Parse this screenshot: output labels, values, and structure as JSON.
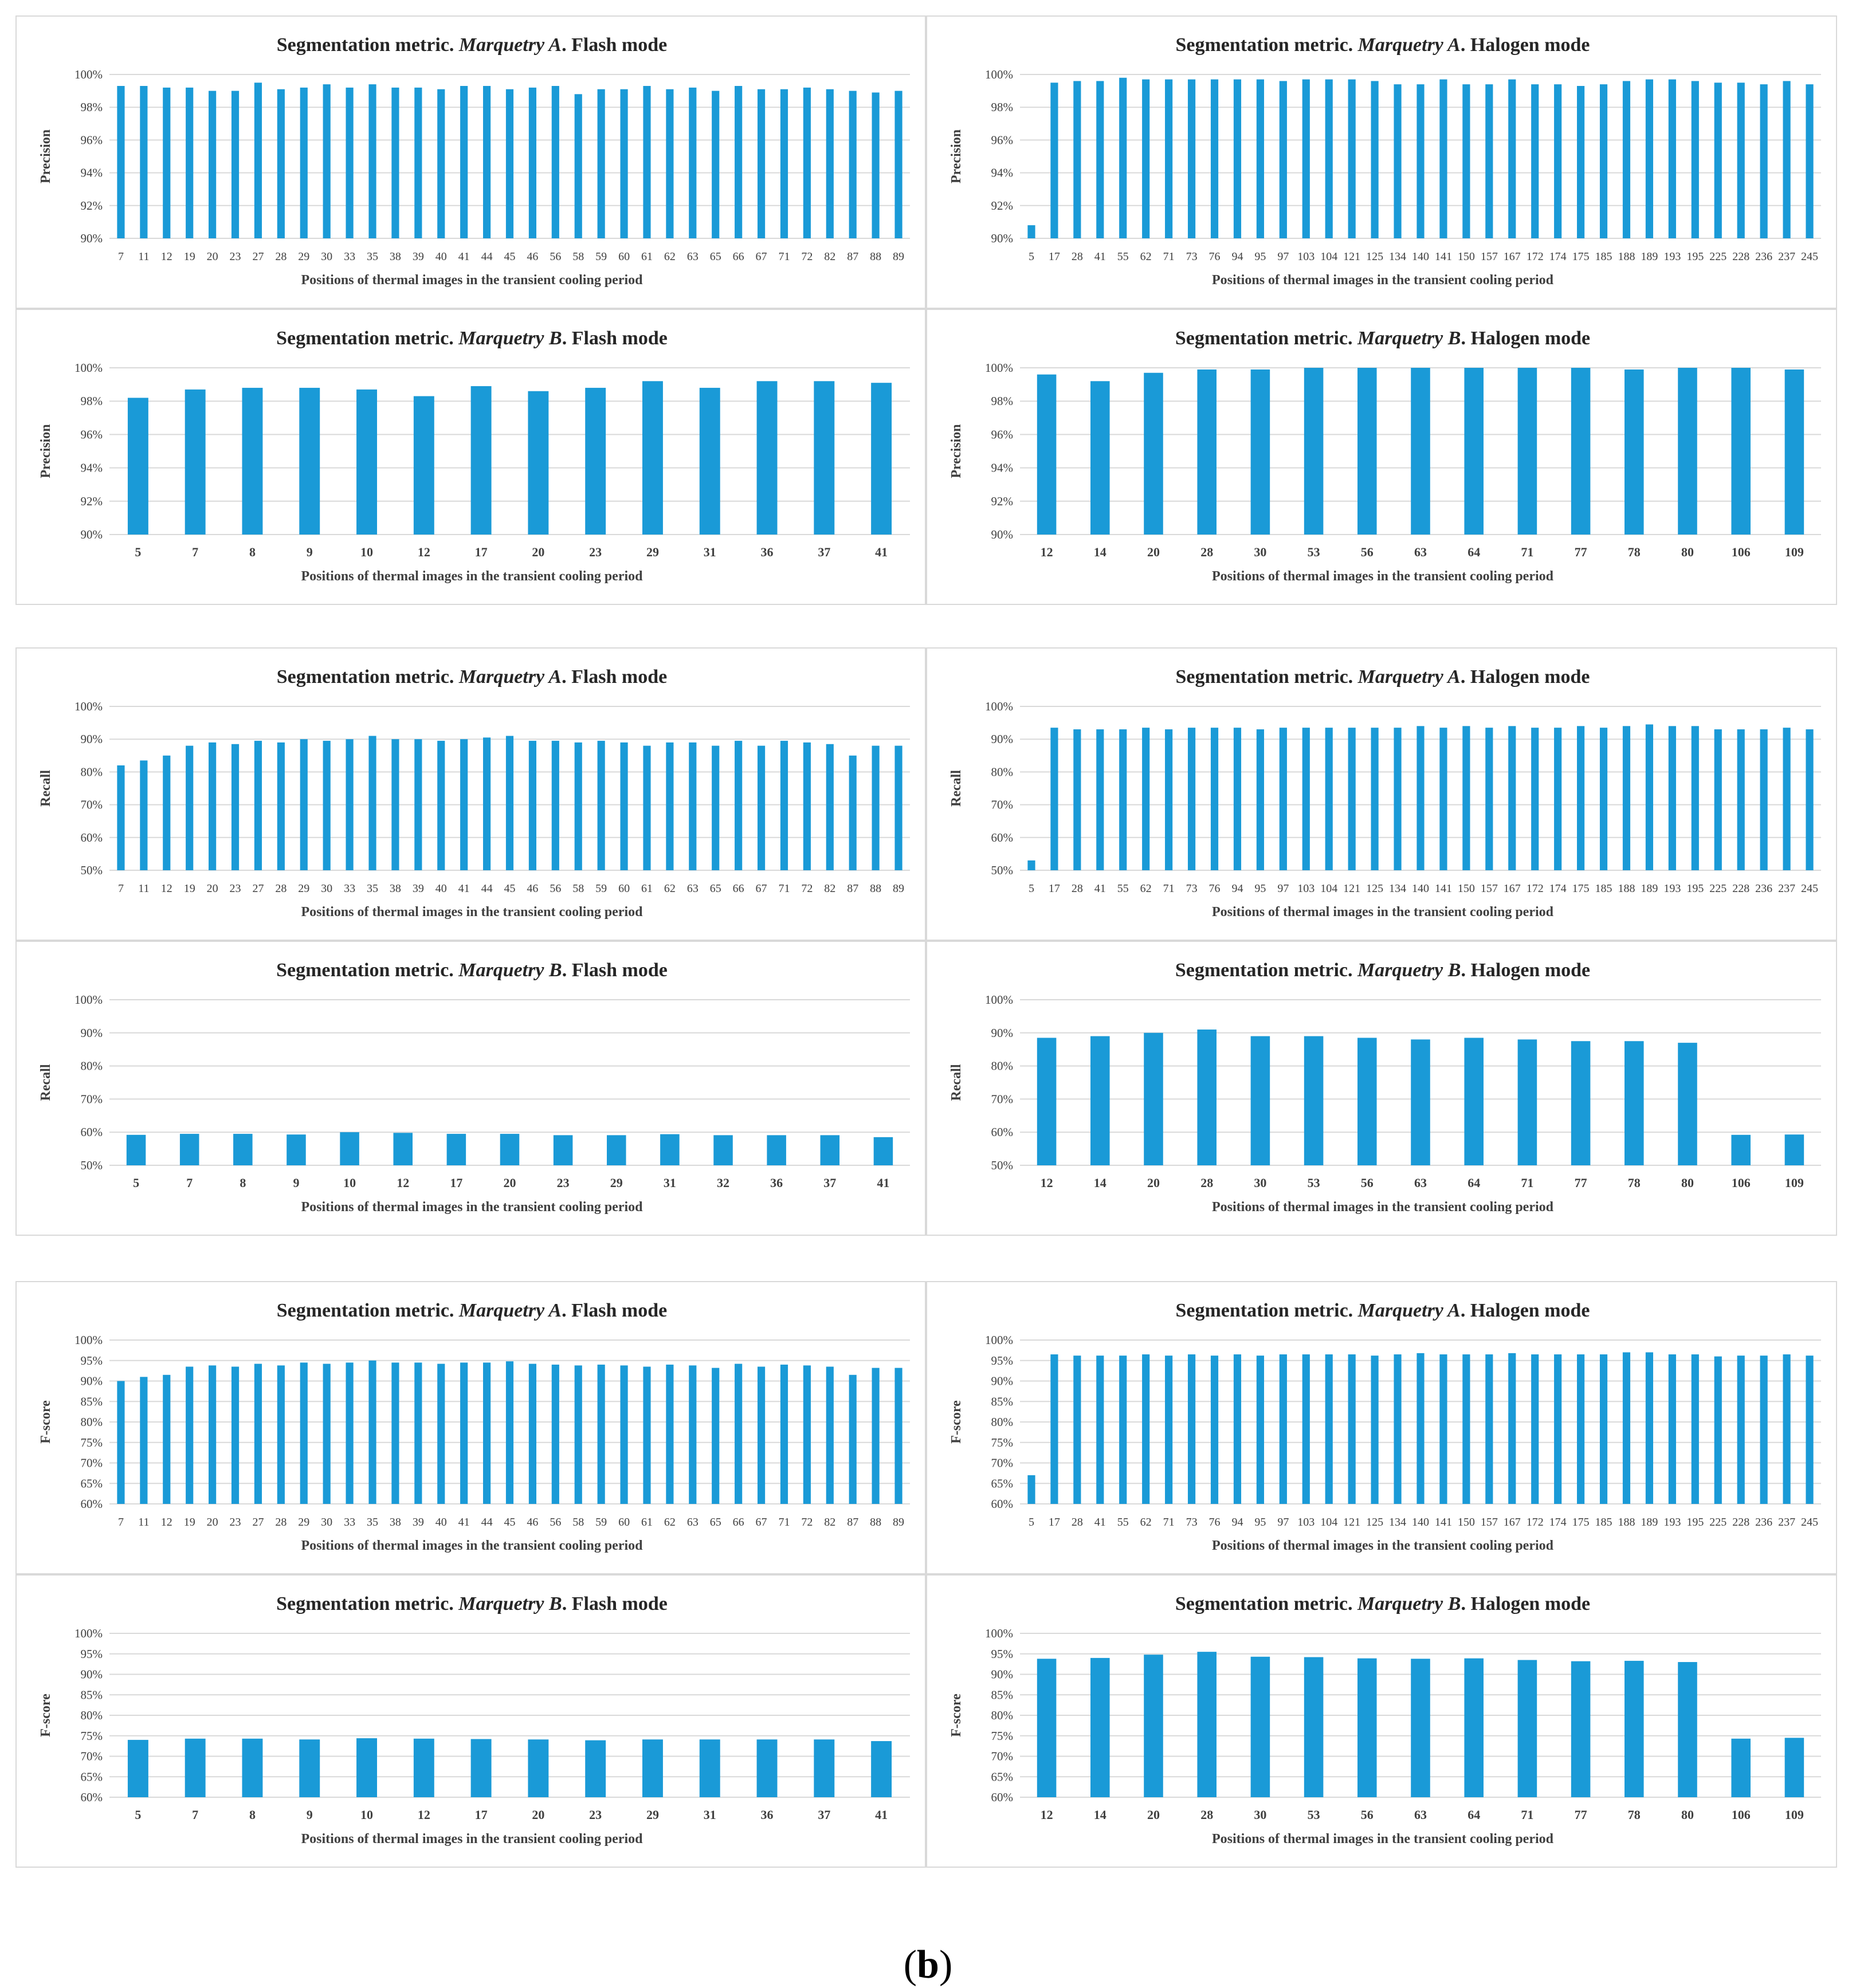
{
  "caption": {
    "open": "(",
    "letter": "b",
    "close": ")"
  },
  "colors": {
    "bar": "#1a9ad7",
    "grid": "#d9d9d9",
    "text": "#404040",
    "title": "#262626"
  },
  "chart_data": [
    {
      "type": "bar",
      "title": {
        "prefix": "Segmentation metric. ",
        "italic": "Marquetry A",
        "suffix": ". Flash mode"
      },
      "ylabel": "Precision",
      "xlabel": "Positions of thermal images in the transient cooling period",
      "ylim": [
        90,
        100
      ],
      "ystep": 2,
      "yformat": "%",
      "categories": [
        "7",
        "11",
        "12",
        "19",
        "20",
        "23",
        "27",
        "28",
        "29",
        "30",
        "33",
        "35",
        "38",
        "39",
        "40",
        "41",
        "44",
        "45",
        "46",
        "56",
        "58",
        "59",
        "60",
        "61",
        "62",
        "63",
        "65",
        "66",
        "67",
        "71",
        "72",
        "82",
        "87",
        "88",
        "89"
      ],
      "values": [
        99.3,
        99.3,
        99.2,
        99.2,
        99.0,
        99.0,
        99.5,
        99.1,
        99.2,
        99.4,
        99.2,
        99.4,
        99.2,
        99.2,
        99.1,
        99.3,
        99.3,
        99.1,
        99.2,
        99.3,
        98.8,
        99.1,
        99.1,
        99.3,
        99.1,
        99.2,
        99.0,
        99.3,
        99.1,
        99.1,
        99.2,
        99.1,
        99.0,
        98.9,
        99.0
      ]
    },
    {
      "type": "bar",
      "title": {
        "prefix": "Segmentation metric. ",
        "italic": "Marquetry A",
        "suffix": ". Halogen mode"
      },
      "ylabel": "Precision",
      "xlabel": "Positions of thermal images in the transient cooling period",
      "ylim": [
        90,
        100
      ],
      "ystep": 2,
      "yformat": "%",
      "categories": [
        "5",
        "17",
        "28",
        "41",
        "55",
        "62",
        "71",
        "73",
        "76",
        "94",
        "95",
        "97",
        "103",
        "104",
        "121",
        "125",
        "134",
        "140",
        "141",
        "150",
        "157",
        "167",
        "172",
        "174",
        "175",
        "185",
        "188",
        "189",
        "193",
        "195",
        "225",
        "228",
        "236",
        "237",
        "245"
      ],
      "values": [
        90.8,
        99.5,
        99.6,
        99.6,
        99.8,
        99.7,
        99.7,
        99.7,
        99.7,
        99.7,
        99.7,
        99.6,
        99.7,
        99.7,
        99.7,
        99.6,
        99.4,
        99.4,
        99.7,
        99.4,
        99.4,
        99.7,
        99.4,
        99.4,
        99.3,
        99.4,
        99.6,
        99.7,
        99.7,
        99.6,
        99.5,
        99.5,
        99.4,
        99.6,
        99.4
      ]
    },
    {
      "type": "bar",
      "title": {
        "prefix": "Segmentation metric. ",
        "italic": "Marquetry B",
        "suffix": ". Flash mode"
      },
      "ylabel": "Precision",
      "xlabel": "Positions of thermal images in the transient cooling period",
      "ylim": [
        90,
        100
      ],
      "ystep": 2,
      "yformat": "%",
      "categories": [
        "5",
        "7",
        "8",
        "9",
        "10",
        "12",
        "17",
        "20",
        "23",
        "29",
        "31",
        "36",
        "37",
        "41"
      ],
      "values": [
        98.2,
        98.7,
        98.8,
        98.8,
        98.7,
        98.3,
        98.9,
        98.6,
        98.8,
        99.2,
        98.8,
        99.2,
        99.2,
        99.1
      ]
    },
    {
      "type": "bar",
      "title": {
        "prefix": "Segmentation metric. ",
        "italic": "Marquetry B",
        "suffix": ". Halogen mode"
      },
      "ylabel": "Precision",
      "xlabel": "Positions of thermal images in the transient cooling period",
      "ylim": [
        90,
        100
      ],
      "ystep": 2,
      "yformat": "%",
      "categories": [
        "12",
        "14",
        "20",
        "28",
        "30",
        "53",
        "56",
        "63",
        "64",
        "71",
        "77",
        "78",
        "80",
        "106",
        "109"
      ],
      "values": [
        99.6,
        99.2,
        99.7,
        99.9,
        99.9,
        100,
        100,
        100,
        100,
        100,
        100,
        99.9,
        100,
        100,
        99.9
      ]
    },
    {
      "type": "bar",
      "title": {
        "prefix": "Segmentation metric. ",
        "italic": "Marquetry A",
        "suffix": ". Flash mode"
      },
      "ylabel": "Recall",
      "xlabel": "Positions of thermal images in the transient cooling period",
      "ylim": [
        50,
        100
      ],
      "ystep": 10,
      "yformat": "%",
      "categories": [
        "7",
        "11",
        "12",
        "19",
        "20",
        "23",
        "27",
        "28",
        "29",
        "30",
        "33",
        "35",
        "38",
        "39",
        "40",
        "41",
        "44",
        "45",
        "46",
        "56",
        "58",
        "59",
        "60",
        "61",
        "62",
        "63",
        "65",
        "66",
        "67",
        "71",
        "72",
        "82",
        "87",
        "88",
        "89"
      ],
      "values": [
        82,
        83.5,
        85,
        88,
        89,
        88.5,
        89.5,
        89,
        90,
        89.5,
        90,
        91,
        90,
        90,
        89.5,
        90,
        90.5,
        91,
        89.5,
        89.5,
        89,
        89.5,
        89,
        88,
        89,
        89,
        88,
        89.5,
        88,
        89.5,
        89,
        88.5,
        85,
        88,
        88
      ]
    },
    {
      "type": "bar",
      "title": {
        "prefix": "Segmentation metric. ",
        "italic": "Marquetry A",
        "suffix": ". Halogen mode"
      },
      "ylabel": "Recall",
      "xlabel": "Positions of thermal images in the transient cooling period",
      "ylim": [
        50,
        100
      ],
      "ystep": 10,
      "yformat": "%",
      "categories": [
        "5",
        "17",
        "28",
        "41",
        "55",
        "62",
        "71",
        "73",
        "76",
        "94",
        "95",
        "97",
        "103",
        "104",
        "121",
        "125",
        "134",
        "140",
        "141",
        "150",
        "157",
        "167",
        "172",
        "174",
        "175",
        "185",
        "188",
        "189",
        "193",
        "195",
        "225",
        "228",
        "236",
        "237",
        "245"
      ],
      "values": [
        53,
        93.5,
        93,
        93,
        93,
        93.5,
        93,
        93.5,
        93.5,
        93.5,
        93,
        93.5,
        93.5,
        93.5,
        93.5,
        93.5,
        93.5,
        94,
        93.5,
        94,
        93.5,
        94,
        93.5,
        93.5,
        94,
        93.5,
        94,
        94.5,
        94,
        94,
        93,
        93,
        93,
        93.5,
        93
      ]
    },
    {
      "type": "bar",
      "title": {
        "prefix": "Segmentation metric. ",
        "italic": "Marquetry B",
        "suffix": ". Flash mode"
      },
      "ylabel": "Recall",
      "xlabel": "Positions of thermal images in the transient cooling period",
      "ylim": [
        50,
        100
      ],
      "ystep": 10,
      "yformat": "%",
      "categories": [
        "5",
        "7",
        "8",
        "9",
        "10",
        "12",
        "17",
        "20",
        "23",
        "29",
        "31",
        "32",
        "36",
        "37",
        "41"
      ],
      "values": [
        59.2,
        59.5,
        59.5,
        59.3,
        60,
        59.8,
        59.5,
        59.5,
        59.1,
        59.1,
        59.4,
        59.1,
        59.1,
        59.1,
        58.5
      ]
    },
    {
      "type": "bar",
      "title": {
        "prefix": "Segmentation metric. ",
        "italic": "Marquetry B",
        "suffix": ". Halogen mode"
      },
      "ylabel": "Recall",
      "xlabel": "Positions of thermal images in the transient cooling period",
      "ylim": [
        50,
        100
      ],
      "ystep": 10,
      "yformat": "%",
      "categories": [
        "12",
        "14",
        "20",
        "28",
        "30",
        "53",
        "56",
        "63",
        "64",
        "71",
        "77",
        "78",
        "80",
        "106",
        "109"
      ],
      "values": [
        88.5,
        89,
        90,
        91,
        89,
        89,
        88.5,
        88,
        88.5,
        88,
        87.5,
        87.5,
        87,
        59.2,
        59.3
      ]
    },
    {
      "type": "bar",
      "title": {
        "prefix": "Segmentation metric. ",
        "italic": "Marquetry A",
        "suffix": ". Flash mode"
      },
      "ylabel": "F-score",
      "xlabel": "Positions of thermal images in the transient cooling period",
      "ylim": [
        60,
        100
      ],
      "ystep": 5,
      "yformat": "%",
      "categories": [
        "7",
        "11",
        "12",
        "19",
        "20",
        "23",
        "27",
        "28",
        "29",
        "30",
        "33",
        "35",
        "38",
        "39",
        "40",
        "41",
        "44",
        "45",
        "46",
        "56",
        "58",
        "59",
        "60",
        "61",
        "62",
        "63",
        "65",
        "66",
        "67",
        "71",
        "72",
        "82",
        "87",
        "88",
        "89"
      ],
      "values": [
        90,
        91,
        91.5,
        93.5,
        93.8,
        93.5,
        94.2,
        93.8,
        94.5,
        94.2,
        94.5,
        95,
        94.5,
        94.5,
        94.2,
        94.5,
        94.5,
        94.8,
        94.2,
        94,
        93.8,
        94,
        93.8,
        93.5,
        94,
        93.8,
        93.2,
        94.2,
        93.5,
        94,
        93.8,
        93.5,
        91.5,
        93.2,
        93.2
      ]
    },
    {
      "type": "bar",
      "title": {
        "prefix": "Segmentation metric. ",
        "italic": "Marquetry A",
        "suffix": ". Halogen mode"
      },
      "ylabel": "F-score",
      "xlabel": "Positions of thermal images in the transient cooling period",
      "ylim": [
        60,
        100
      ],
      "ystep": 5,
      "yformat": "%",
      "categories": [
        "5",
        "17",
        "28",
        "41",
        "55",
        "62",
        "71",
        "73",
        "76",
        "94",
        "95",
        "97",
        "103",
        "104",
        "121",
        "125",
        "134",
        "140",
        "141",
        "150",
        "157",
        "167",
        "172",
        "174",
        "175",
        "185",
        "188",
        "189",
        "193",
        "195",
        "225",
        "228",
        "236",
        "237",
        "245"
      ],
      "values": [
        67,
        96.5,
        96.2,
        96.2,
        96.2,
        96.5,
        96.2,
        96.5,
        96.2,
        96.5,
        96.2,
        96.5,
        96.5,
        96.5,
        96.5,
        96.2,
        96.5,
        96.8,
        96.5,
        96.5,
        96.5,
        96.8,
        96.5,
        96.5,
        96.5,
        96.5,
        97,
        97,
        96.5,
        96.5,
        96,
        96.2,
        96.2,
        96.5,
        96.2
      ]
    },
    {
      "type": "bar",
      "title": {
        "prefix": "Segmentation metric. ",
        "italic": "Marquetry B",
        "suffix": ". Flash mode"
      },
      "ylabel": "F-score",
      "xlabel": "Positions of thermal images in the transient cooling period",
      "ylim": [
        60,
        100
      ],
      "ystep": 5,
      "yformat": "%",
      "categories": [
        "5",
        "7",
        "8",
        "9",
        "10",
        "12",
        "17",
        "20",
        "23",
        "29",
        "31",
        "36",
        "37",
        "41"
      ],
      "values": [
        74,
        74.3,
        74.3,
        74.1,
        74.4,
        74.3,
        74.2,
        74.1,
        73.9,
        74.1,
        74.1,
        74.1,
        74.1,
        73.7
      ]
    },
    {
      "type": "bar",
      "title": {
        "prefix": "Segmentation metric. ",
        "italic": "Marquetry B",
        "suffix": ". Halogen mode"
      },
      "ylabel": "F-score",
      "xlabel": "Positions of thermal images in the transient cooling period",
      "ylim": [
        60,
        100
      ],
      "ystep": 5,
      "yformat": "%",
      "categories": [
        "12",
        "14",
        "20",
        "28",
        "30",
        "53",
        "56",
        "63",
        "64",
        "71",
        "77",
        "78",
        "80",
        "106",
        "109"
      ],
      "values": [
        93.8,
        94,
        94.8,
        95.5,
        94.3,
        94.2,
        93.9,
        93.8,
        93.9,
        93.5,
        93.2,
        93.3,
        93,
        74.3,
        74.5
      ]
    }
  ]
}
